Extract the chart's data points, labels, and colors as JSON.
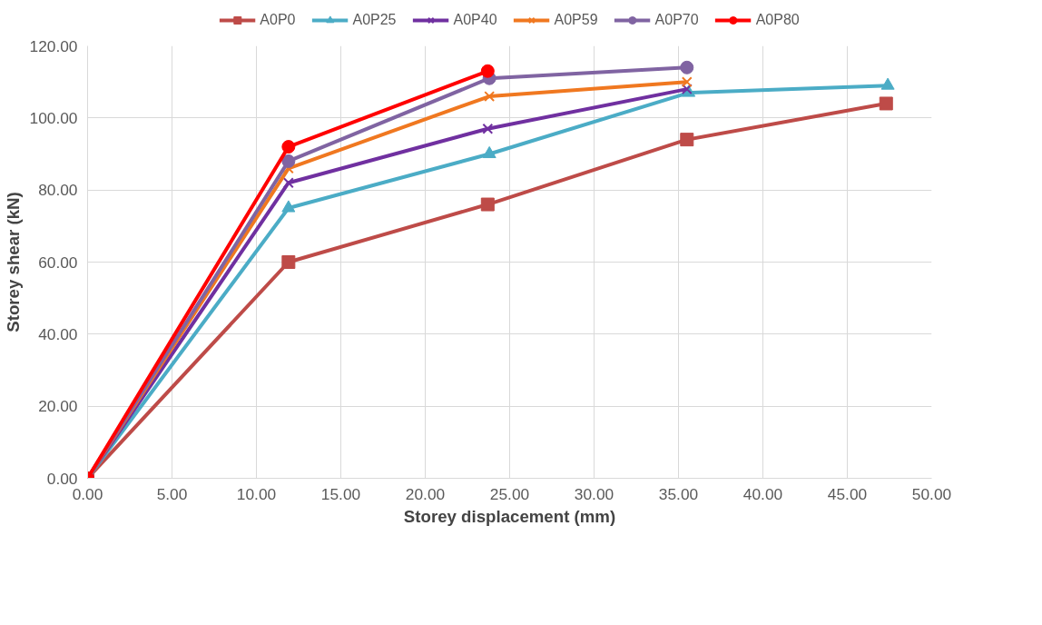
{
  "chart_data": {
    "type": "line",
    "xlabel": "Storey displacement (mm)",
    "ylabel": "Storey shear (kN)",
    "xlim": [
      0,
      50
    ],
    "ylim": [
      0,
      120
    ],
    "xticks": [
      {
        "value": 0,
        "label": "0.00"
      },
      {
        "value": 5,
        "label": "5.00"
      },
      {
        "value": 10,
        "label": "10.00"
      },
      {
        "value": 15,
        "label": "15.00"
      },
      {
        "value": 20,
        "label": "20.00"
      },
      {
        "value": 25,
        "label": "25.00"
      },
      {
        "value": 30,
        "label": "30.00"
      },
      {
        "value": 35,
        "label": "35.00"
      },
      {
        "value": 40,
        "label": "40.00"
      },
      {
        "value": 45,
        "label": "45.00"
      },
      {
        "value": 50,
        "label": "50.00"
      }
    ],
    "yticks": [
      {
        "value": 0,
        "label": "0.00"
      },
      {
        "value": 20,
        "label": "20.00"
      },
      {
        "value": 40,
        "label": "40.00"
      },
      {
        "value": 60,
        "label": "60.00"
      },
      {
        "value": 80,
        "label": "80.00"
      },
      {
        "value": 100,
        "label": "100.00"
      },
      {
        "value": 120,
        "label": "120.00"
      }
    ],
    "grid": true,
    "legend": "top",
    "series": [
      {
        "name": "A0P0",
        "color": "#be4b48",
        "marker": "square",
        "x": [
          0,
          11.9,
          23.7,
          35.5,
          47.3
        ],
        "values": [
          0,
          60,
          76,
          94,
          104
        ]
      },
      {
        "name": "A0P25",
        "color": "#4bacc6",
        "marker": "triangle",
        "x": [
          0,
          11.9,
          23.8,
          35.6,
          47.4
        ],
        "values": [
          0,
          75,
          90,
          107,
          109
        ]
      },
      {
        "name": "A0P40",
        "color": "#7030a0",
        "marker": "cross",
        "x": [
          0,
          11.9,
          23.7,
          35.5
        ],
        "values": [
          0,
          82,
          97,
          108
        ]
      },
      {
        "name": "A0P59",
        "color": "#f07820",
        "marker": "cross",
        "x": [
          0,
          11.9,
          23.8,
          35.5
        ],
        "values": [
          0,
          86,
          106,
          110
        ]
      },
      {
        "name": "A0P70",
        "color": "#8064a2",
        "marker": "circle",
        "x": [
          0,
          11.9,
          23.8,
          35.5
        ],
        "values": [
          0,
          88,
          111,
          114
        ]
      },
      {
        "name": "A0P80",
        "color": "#ff0000",
        "marker": "circle",
        "x": [
          0,
          11.9,
          23.7
        ],
        "values": [
          0,
          92,
          113
        ]
      }
    ]
  }
}
